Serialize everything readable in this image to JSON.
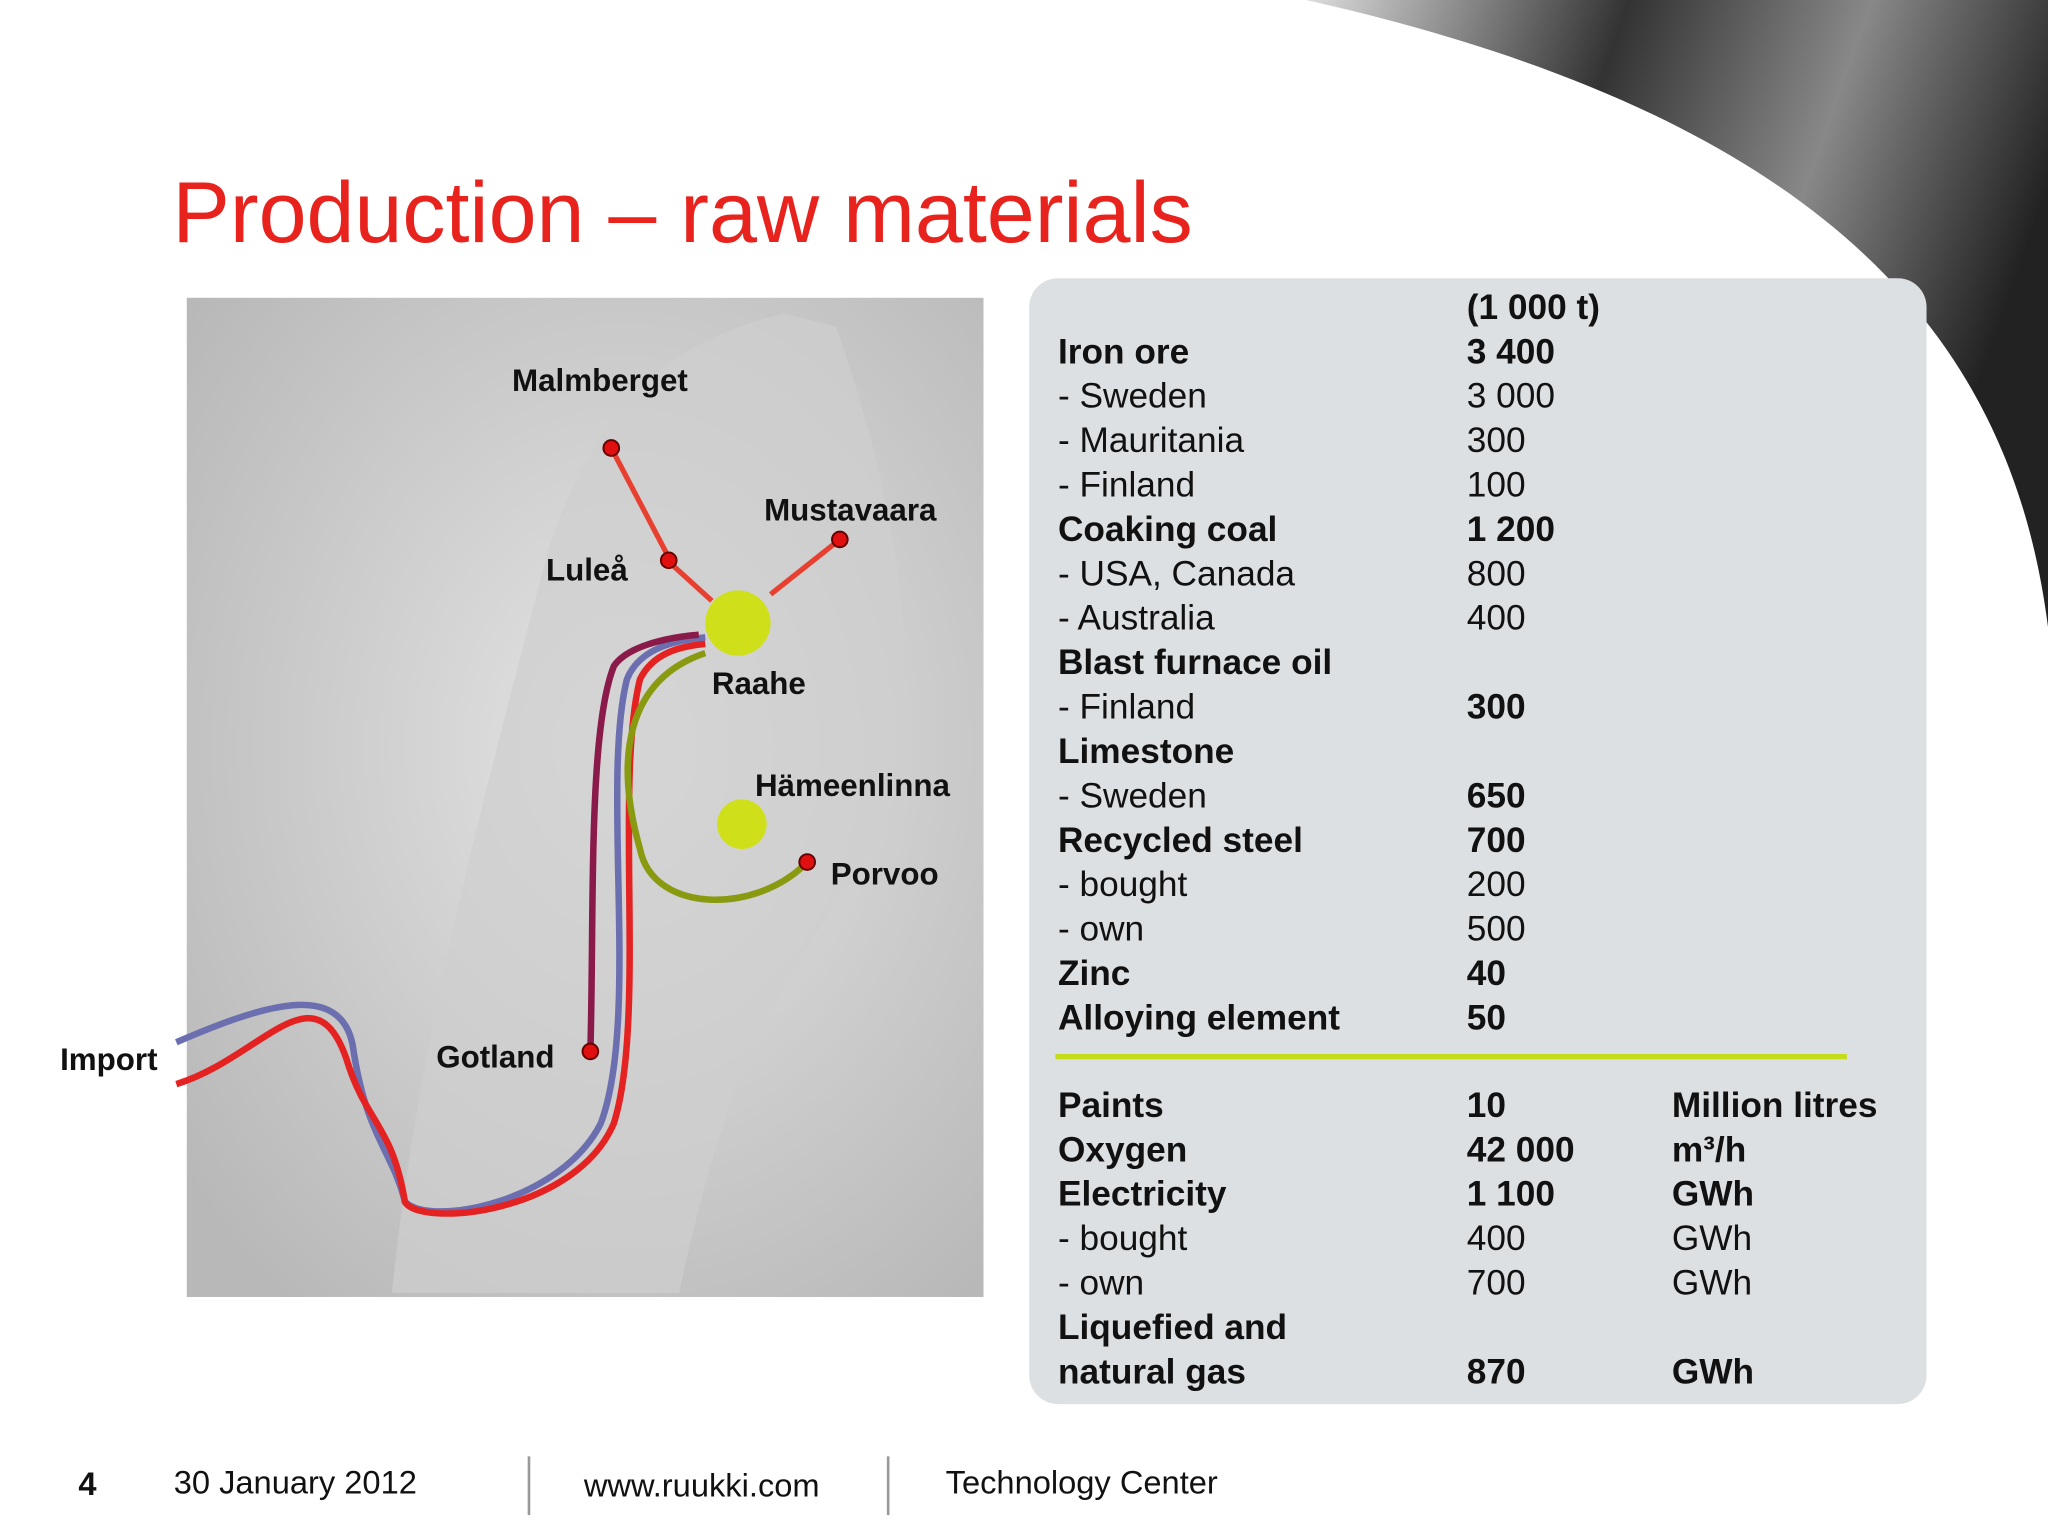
{
  "header": {
    "title": "Production – raw materials"
  },
  "map": {
    "labels": [
      "Malmberget",
      "Mustavaara",
      "Luleå",
      "Raahe",
      "Hämeenlinna",
      "Porvoo",
      "Gotland",
      "Import"
    ]
  },
  "table": {
    "unit_header": "(1 000 t)",
    "rows": [
      [
        "Iron ore",
        "3 400"
      ],
      [
        "- Sweden",
        "3 000"
      ],
      [
        "- Mauritania",
        "300"
      ],
      [
        "- Finland",
        "100"
      ],
      [
        "Coaking coal",
        "1 200"
      ],
      [
        "- USA, Canada",
        "800"
      ],
      [
        "- Australia",
        "400"
      ],
      [
        "Blast furnace oil"
      ],
      [
        "- Finland",
        "300"
      ],
      [
        "Limestone"
      ],
      [
        "- Sweden",
        "650"
      ],
      [
        "Recycled steel",
        "700"
      ],
      [
        "- bought",
        "200"
      ],
      [
        "- own",
        "500"
      ],
      [
        "Zinc",
        "40"
      ],
      [
        "Alloying element",
        "50"
      ]
    ],
    "energy_rows": [
      [
        "Paints",
        "10",
        "Million litres"
      ],
      [
        "Oxygen",
        "42 000",
        "m³/h"
      ],
      [
        "Electricity",
        "1 100",
        "GWh"
      ],
      [
        "- bought",
        "400",
        "GWh"
      ],
      [
        "- own",
        "700",
        "GWh"
      ],
      [
        "Liquefied and"
      ],
      [
        "natural gas",
        "870",
        "GWh"
      ]
    ]
  },
  "footer": {
    "page": "4",
    "date": "30 January 2012",
    "url": "www.ruukki.com",
    "unit": "Technology Center"
  }
}
